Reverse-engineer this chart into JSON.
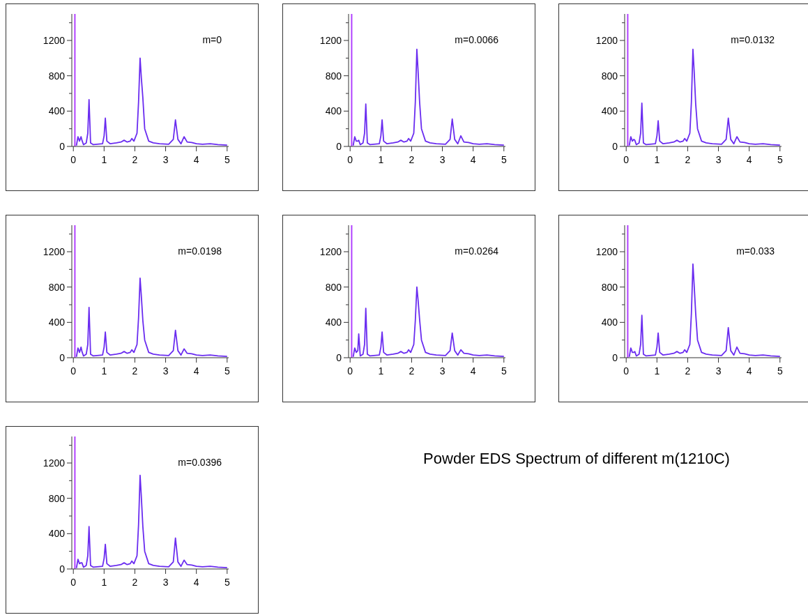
{
  "chart_data": [
    {
      "type": "line",
      "title": "m=0",
      "x": [
        0.1,
        0.15,
        0.2,
        0.25,
        0.28,
        0.33,
        0.42,
        0.47,
        0.51,
        0.56,
        0.65,
        0.95,
        1.0,
        1.04,
        1.09,
        1.2,
        1.4,
        1.55,
        1.65,
        1.75,
        1.85,
        1.9,
        1.97,
        2.07,
        2.12,
        2.17,
        2.21,
        2.26,
        2.32,
        2.45,
        2.6,
        2.8,
        3.1,
        3.25,
        3.32,
        3.4,
        3.5,
        3.6,
        3.7,
        3.85,
        4.0,
        4.2,
        4.45,
        4.7,
        5.0
      ],
      "series": [
        {
          "color": "#6a2cf0",
          "values": [
            10,
            110,
            60,
            110,
            70,
            20,
            40,
            150,
            530,
            40,
            20,
            30,
            120,
            320,
            60,
            30,
            40,
            50,
            70,
            50,
            60,
            90,
            60,
            150,
            500,
            1000,
            780,
            550,
            200,
            60,
            40,
            30,
            25,
            80,
            300,
            80,
            30,
            110,
            50,
            45,
            30,
            25,
            30,
            20,
            15
          ]
        }
      ],
      "xlim": [
        -0.05,
        5.05
      ],
      "ylim": [
        0,
        1500
      ],
      "xticks": [
        0,
        1,
        2,
        3,
        4,
        5
      ],
      "yticks": [
        0,
        {
          "value": 200,
          "label": null
        },
        400,
        {
          "value": 600,
          "label": null
        },
        800,
        {
          "value": 1000,
          "label": null
        },
        1200,
        {
          "value": 1400,
          "label": null
        }
      ],
      "ref_lines": [
        {
          "axis": "x",
          "value": 0.05,
          "color": "#b040ff"
        }
      ]
    },
    {
      "type": "line",
      "title": "m=0.0066",
      "x": [
        0.1,
        0.15,
        0.2,
        0.25,
        0.28,
        0.33,
        0.42,
        0.47,
        0.51,
        0.56,
        0.65,
        0.95,
        1.0,
        1.04,
        1.09,
        1.2,
        1.4,
        1.55,
        1.65,
        1.75,
        1.85,
        1.9,
        1.97,
        2.07,
        2.12,
        2.17,
        2.21,
        2.26,
        2.32,
        2.45,
        2.6,
        2.8,
        3.1,
        3.25,
        3.32,
        3.4,
        3.5,
        3.6,
        3.7,
        3.85,
        4.0,
        4.2,
        4.45,
        4.7,
        5.0
      ],
      "series": [
        {
          "color": "#6a2cf0",
          "values": [
            10,
            110,
            60,
            60,
            70,
            20,
            40,
            150,
            480,
            40,
            20,
            30,
            120,
            300,
            60,
            30,
            40,
            50,
            70,
            50,
            60,
            90,
            60,
            150,
            500,
            1100,
            850,
            500,
            200,
            60,
            40,
            30,
            25,
            80,
            310,
            80,
            30,
            120,
            50,
            45,
            30,
            25,
            30,
            20,
            15
          ]
        }
      ],
      "xlim": [
        -0.05,
        5.05
      ],
      "ylim": [
        0,
        1500
      ],
      "xticks": [
        0,
        1,
        2,
        3,
        4,
        5
      ],
      "yticks": [
        0,
        {
          "value": 200,
          "label": null
        },
        400,
        {
          "value": 600,
          "label": null
        },
        800,
        {
          "value": 1000,
          "label": null
        },
        1200,
        {
          "value": 1400,
          "label": null
        }
      ],
      "ref_lines": [
        {
          "axis": "x",
          "value": 0.05,
          "color": "#b040ff"
        }
      ]
    },
    {
      "type": "line",
      "title": "m=0.0132",
      "x": [
        0.1,
        0.15,
        0.2,
        0.25,
        0.28,
        0.33,
        0.42,
        0.47,
        0.51,
        0.56,
        0.65,
        0.95,
        1.0,
        1.04,
        1.09,
        1.2,
        1.4,
        1.55,
        1.65,
        1.75,
        1.85,
        1.9,
        1.97,
        2.07,
        2.12,
        2.17,
        2.21,
        2.26,
        2.32,
        2.45,
        2.6,
        2.8,
        3.1,
        3.25,
        3.32,
        3.4,
        3.5,
        3.6,
        3.7,
        3.85,
        4.0,
        4.2,
        4.45,
        4.7,
        5.0
      ],
      "series": [
        {
          "color": "#6a2cf0",
          "values": [
            10,
            110,
            60,
            80,
            70,
            20,
            40,
            150,
            490,
            40,
            20,
            30,
            120,
            290,
            60,
            30,
            40,
            50,
            70,
            50,
            60,
            90,
            60,
            150,
            500,
            1100,
            850,
            480,
            200,
            60,
            40,
            30,
            25,
            80,
            320,
            80,
            30,
            110,
            50,
            45,
            30,
            25,
            30,
            20,
            15
          ]
        }
      ],
      "xlim": [
        -0.05,
        5.05
      ],
      "ylim": [
        0,
        1500
      ],
      "xticks": [
        0,
        1,
        2,
        3,
        4,
        5
      ],
      "yticks": [
        0,
        {
          "value": 200,
          "label": null
        },
        400,
        {
          "value": 600,
          "label": null
        },
        800,
        {
          "value": 1000,
          "label": null
        },
        1200,
        {
          "value": 1400,
          "label": null
        }
      ],
      "ref_lines": [
        {
          "axis": "x",
          "value": 0.05,
          "color": "#b040ff"
        }
      ]
    },
    {
      "type": "line",
      "title": "m=0.0198",
      "x": [
        0.1,
        0.15,
        0.2,
        0.25,
        0.28,
        0.33,
        0.42,
        0.47,
        0.51,
        0.56,
        0.65,
        0.95,
        1.0,
        1.04,
        1.09,
        1.2,
        1.4,
        1.55,
        1.65,
        1.75,
        1.85,
        1.9,
        1.97,
        2.07,
        2.12,
        2.17,
        2.21,
        2.26,
        2.32,
        2.45,
        2.6,
        2.8,
        3.1,
        3.25,
        3.32,
        3.4,
        3.5,
        3.6,
        3.7,
        3.85,
        4.0,
        4.2,
        4.45,
        4.7,
        5.0
      ],
      "series": [
        {
          "color": "#6a2cf0",
          "values": [
            10,
            110,
            60,
            120,
            70,
            20,
            40,
            150,
            570,
            40,
            20,
            30,
            120,
            290,
            60,
            30,
            40,
            50,
            70,
            50,
            60,
            90,
            60,
            150,
            450,
            900,
            700,
            420,
            200,
            60,
            40,
            30,
            25,
            80,
            310,
            80,
            30,
            100,
            50,
            45,
            30,
            25,
            30,
            20,
            15
          ]
        }
      ],
      "xlim": [
        -0.05,
        5.05
      ],
      "ylim": [
        0,
        1500
      ],
      "xticks": [
        0,
        1,
        2,
        3,
        4,
        5
      ],
      "yticks": [
        0,
        {
          "value": 200,
          "label": null
        },
        400,
        {
          "value": 600,
          "label": null
        },
        800,
        {
          "value": 1000,
          "label": null
        },
        1200,
        {
          "value": 1400,
          "label": null
        }
      ],
      "ref_lines": [
        {
          "axis": "x",
          "value": 0.05,
          "color": "#b040ff"
        }
      ]
    },
    {
      "type": "line",
      "title": "m=0.0264",
      "x": [
        0.1,
        0.15,
        0.2,
        0.25,
        0.28,
        0.33,
        0.42,
        0.47,
        0.51,
        0.56,
        0.65,
        0.95,
        1.0,
        1.04,
        1.09,
        1.2,
        1.4,
        1.55,
        1.65,
        1.75,
        1.85,
        1.9,
        1.97,
        2.07,
        2.12,
        2.17,
        2.21,
        2.26,
        2.32,
        2.45,
        2.6,
        2.8,
        3.1,
        3.25,
        3.32,
        3.4,
        3.5,
        3.6,
        3.7,
        3.85,
        4.0,
        4.2,
        4.45,
        4.7,
        5.0
      ],
      "series": [
        {
          "color": "#6a2cf0",
          "values": [
            10,
            110,
            60,
            80,
            270,
            20,
            40,
            150,
            560,
            40,
            20,
            30,
            120,
            290,
            60,
            30,
            40,
            50,
            70,
            50,
            60,
            90,
            60,
            150,
            420,
            800,
            650,
            430,
            200,
            60,
            40,
            30,
            25,
            80,
            280,
            80,
            30,
            90,
            50,
            45,
            30,
            25,
            30,
            20,
            15
          ]
        }
      ],
      "xlim": [
        -0.05,
        5.05
      ],
      "ylim": [
        0,
        1500
      ],
      "xticks": [
        0,
        1,
        2,
        3,
        4,
        5
      ],
      "yticks": [
        0,
        {
          "value": 200,
          "label": null
        },
        400,
        {
          "value": 600,
          "label": null
        },
        800,
        {
          "value": 1000,
          "label": null
        },
        1200,
        {
          "value": 1400,
          "label": null
        }
      ],
      "ref_lines": [
        {
          "axis": "x",
          "value": 0.05,
          "color": "#b040ff"
        }
      ]
    },
    {
      "type": "line",
      "title": "m=0.033",
      "x": [
        0.1,
        0.15,
        0.2,
        0.25,
        0.28,
        0.33,
        0.42,
        0.47,
        0.51,
        0.56,
        0.65,
        0.95,
        1.0,
        1.04,
        1.09,
        1.2,
        1.4,
        1.55,
        1.65,
        1.75,
        1.85,
        1.9,
        1.97,
        2.07,
        2.12,
        2.17,
        2.21,
        2.26,
        2.32,
        2.45,
        2.6,
        2.8,
        3.1,
        3.25,
        3.32,
        3.4,
        3.5,
        3.6,
        3.7,
        3.85,
        4.0,
        4.2,
        4.45,
        4.7,
        5.0
      ],
      "series": [
        {
          "color": "#6a2cf0",
          "values": [
            10,
            110,
            60,
            60,
            70,
            20,
            40,
            150,
            480,
            40,
            20,
            30,
            120,
            280,
            60,
            30,
            40,
            50,
            70,
            50,
            60,
            90,
            60,
            150,
            500,
            1060,
            820,
            500,
            200,
            60,
            40,
            30,
            25,
            80,
            340,
            80,
            30,
            120,
            50,
            45,
            30,
            25,
            30,
            20,
            15
          ]
        }
      ],
      "xlim": [
        -0.05,
        5.05
      ],
      "ylim": [
        0,
        1500
      ],
      "xticks": [
        0,
        1,
        2,
        3,
        4,
        5
      ],
      "yticks": [
        0,
        {
          "value": 200,
          "label": null
        },
        400,
        {
          "value": 600,
          "label": null
        },
        800,
        {
          "value": 1000,
          "label": null
        },
        1200,
        {
          "value": 1400,
          "label": null
        }
      ],
      "ref_lines": [
        {
          "axis": "x",
          "value": 0.05,
          "color": "#b040ff"
        }
      ]
    },
    {
      "type": "line",
      "title": "m=0.0396",
      "x": [
        0.1,
        0.15,
        0.2,
        0.25,
        0.28,
        0.33,
        0.42,
        0.47,
        0.51,
        0.56,
        0.65,
        0.95,
        1.0,
        1.04,
        1.09,
        1.2,
        1.4,
        1.55,
        1.65,
        1.75,
        1.85,
        1.9,
        1.97,
        2.07,
        2.12,
        2.17,
        2.21,
        2.26,
        2.32,
        2.45,
        2.6,
        2.8,
        3.1,
        3.25,
        3.32,
        3.4,
        3.5,
        3.6,
        3.7,
        3.85,
        4.0,
        4.2,
        4.45,
        4.7,
        5.0
      ],
      "series": [
        {
          "color": "#6a2cf0",
          "values": [
            10,
            110,
            60,
            70,
            70,
            20,
            40,
            150,
            480,
            40,
            20,
            30,
            120,
            280,
            60,
            30,
            40,
            50,
            70,
            50,
            60,
            90,
            60,
            150,
            500,
            1060,
            820,
            480,
            200,
            60,
            40,
            30,
            25,
            80,
            350,
            80,
            30,
            100,
            50,
            45,
            30,
            25,
            30,
            20,
            15
          ]
        }
      ],
      "xlim": [
        -0.05,
        5.05
      ],
      "ylim": [
        0,
        1500
      ],
      "xticks": [
        0,
        1,
        2,
        3,
        4,
        5
      ],
      "yticks": [
        0,
        {
          "value": 200,
          "label": null
        },
        400,
        {
          "value": 600,
          "label": null
        },
        800,
        {
          "value": 1000,
          "label": null
        },
        1200,
        {
          "value": 1400,
          "label": null
        }
      ],
      "ref_lines": [
        {
          "axis": "x",
          "value": 0.05,
          "color": "#b040ff"
        }
      ],
      "annotations": [
        "Powder EDS Spectrum of different m(1210C)"
      ]
    }
  ]
}
